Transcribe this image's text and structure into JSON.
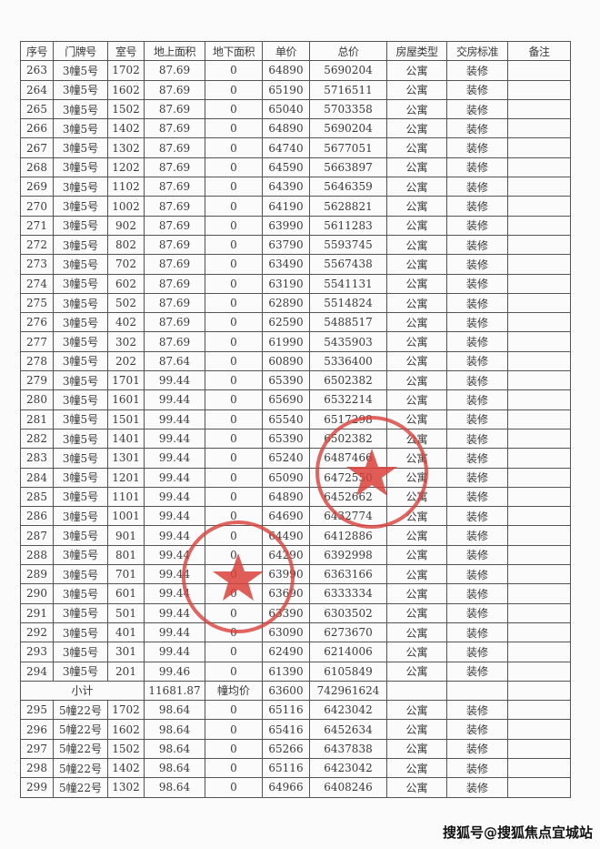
{
  "headers": [
    "序号",
    "门牌号",
    "室号",
    "地上面积",
    "地下面积",
    "单价",
    "总价",
    "房屋类型",
    "交房标准",
    "备注"
  ],
  "rows": [
    [
      "263",
      "3幢5号",
      "1702",
      "87.69",
      "0",
      "64890",
      "5690204",
      "公寓",
      "装修",
      ""
    ],
    [
      "264",
      "3幢5号",
      "1602",
      "87.69",
      "0",
      "65190",
      "5716511",
      "公寓",
      "装修",
      ""
    ],
    [
      "265",
      "3幢5号",
      "1502",
      "87.69",
      "0",
      "65040",
      "5703358",
      "公寓",
      "装修",
      ""
    ],
    [
      "266",
      "3幢5号",
      "1402",
      "87.69",
      "0",
      "64890",
      "5690204",
      "公寓",
      "装修",
      ""
    ],
    [
      "267",
      "3幢5号",
      "1302",
      "87.69",
      "0",
      "64740",
      "5677051",
      "公寓",
      "装修",
      ""
    ],
    [
      "268",
      "3幢5号",
      "1202",
      "87.69",
      "0",
      "64590",
      "5663897",
      "公寓",
      "装修",
      ""
    ],
    [
      "269",
      "3幢5号",
      "1102",
      "87.69",
      "0",
      "64390",
      "5646359",
      "公寓",
      "装修",
      ""
    ],
    [
      "270",
      "3幢5号",
      "1002",
      "87.69",
      "0",
      "64190",
      "5628821",
      "公寓",
      "装修",
      ""
    ],
    [
      "271",
      "3幢5号",
      "902",
      "87.69",
      "0",
      "63990",
      "5611283",
      "公寓",
      "装修",
      ""
    ],
    [
      "272",
      "3幢5号",
      "802",
      "87.69",
      "0",
      "63790",
      "5593745",
      "公寓",
      "装修",
      ""
    ],
    [
      "273",
      "3幢5号",
      "702",
      "87.69",
      "0",
      "63490",
      "5567438",
      "公寓",
      "装修",
      ""
    ],
    [
      "274",
      "3幢5号",
      "602",
      "87.69",
      "0",
      "63190",
      "5541131",
      "公寓",
      "装修",
      ""
    ],
    [
      "275",
      "3幢5号",
      "502",
      "87.69",
      "0",
      "62890",
      "5514824",
      "公寓",
      "装修",
      ""
    ],
    [
      "276",
      "3幢5号",
      "402",
      "87.69",
      "0",
      "62590",
      "5488517",
      "公寓",
      "装修",
      ""
    ],
    [
      "277",
      "3幢5号",
      "302",
      "87.69",
      "0",
      "61990",
      "5435903",
      "公寓",
      "装修",
      ""
    ],
    [
      "278",
      "3幢5号",
      "202",
      "87.64",
      "0",
      "60890",
      "5336400",
      "公寓",
      "装修",
      ""
    ],
    [
      "279",
      "3幢5号",
      "1701",
      "99.44",
      "0",
      "65390",
      "6502382",
      "公寓",
      "装修",
      ""
    ],
    [
      "280",
      "3幢5号",
      "1601",
      "99.44",
      "0",
      "65690",
      "6532214",
      "公寓",
      "装修",
      ""
    ],
    [
      "281",
      "3幢5号",
      "1501",
      "99.44",
      "0",
      "65540",
      "6517298",
      "公寓",
      "装修",
      ""
    ],
    [
      "282",
      "3幢5号",
      "1401",
      "99.44",
      "0",
      "65390",
      "6502382",
      "公寓",
      "装修",
      ""
    ],
    [
      "283",
      "3幢5号",
      "1301",
      "99.44",
      "0",
      "65240",
      "6487466",
      "公寓",
      "装修",
      ""
    ],
    [
      "284",
      "3幢5号",
      "1201",
      "99.44",
      "0",
      "65090",
      "6472550",
      "公寓",
      "装修",
      ""
    ],
    [
      "285",
      "3幢5号",
      "1101",
      "99.44",
      "0",
      "64890",
      "6452662",
      "公寓",
      "装修",
      ""
    ],
    [
      "286",
      "3幢5号",
      "1001",
      "99.44",
      "0",
      "64690",
      "6432774",
      "公寓",
      "装修",
      ""
    ],
    [
      "287",
      "3幢5号",
      "901",
      "99.44",
      "0",
      "64490",
      "6412886",
      "公寓",
      "装修",
      ""
    ],
    [
      "288",
      "3幢5号",
      "801",
      "99.44",
      "0",
      "64290",
      "6392998",
      "公寓",
      "装修",
      ""
    ],
    [
      "289",
      "3幢5号",
      "701",
      "99.44",
      "0",
      "63990",
      "6363166",
      "公寓",
      "装修",
      ""
    ],
    [
      "290",
      "3幢5号",
      "601",
      "99.44",
      "0",
      "63690",
      "6333334",
      "公寓",
      "装修",
      ""
    ],
    [
      "291",
      "3幢5号",
      "501",
      "99.44",
      "0",
      "63390",
      "6303502",
      "公寓",
      "装修",
      ""
    ],
    [
      "292",
      "3幢5号",
      "401",
      "99.44",
      "0",
      "63090",
      "6273670",
      "公寓",
      "装修",
      ""
    ],
    [
      "293",
      "3幢5号",
      "301",
      "99.44",
      "0",
      "62490",
      "6214006",
      "公寓",
      "装修",
      ""
    ],
    [
      "294",
      "3幢5号",
      "201",
      "99.46",
      "0",
      "61390",
      "6105849",
      "公寓",
      "装修",
      ""
    ]
  ],
  "subtotal": {
    "label": "小计",
    "area": "11681.87",
    "avg_label": "幢均价",
    "avg_price": "63600",
    "total": "742961624"
  },
  "rows2": [
    [
      "295",
      "5幢22号",
      "1702",
      "98.64",
      "0",
      "65116",
      "6423042",
      "公寓",
      "装修",
      ""
    ],
    [
      "296",
      "5幢22号",
      "1602",
      "98.64",
      "0",
      "65416",
      "6452634",
      "公寓",
      "装修",
      ""
    ],
    [
      "297",
      "5幢22号",
      "1502",
      "98.64",
      "0",
      "65266",
      "6437838",
      "公寓",
      "装修",
      ""
    ],
    [
      "298",
      "5幢22号",
      "1402",
      "98.64",
      "0",
      "65116",
      "6423042",
      "公寓",
      "装修",
      ""
    ],
    [
      "299",
      "5幢22号",
      "1302",
      "98.64",
      "0",
      "64966",
      "6408246",
      "公寓",
      "装修",
      ""
    ]
  ],
  "watermark": "搜狐号@搜狐焦点宜城站",
  "stamp_color": "#d9403a"
}
